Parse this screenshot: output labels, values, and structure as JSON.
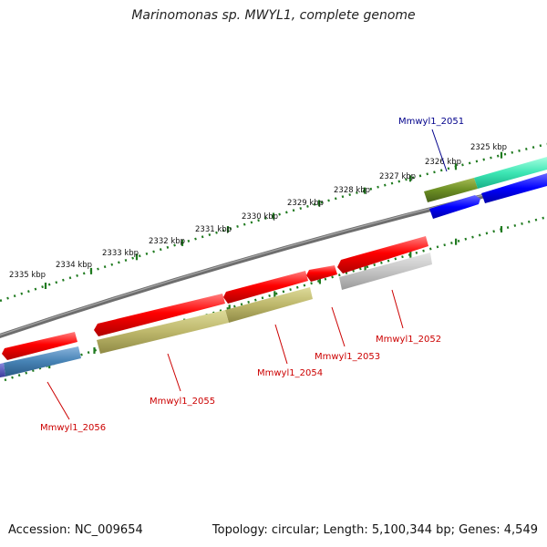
{
  "title": "Marinomonas sp. MWYL1, complete genome",
  "footer": {
    "accession": "Accession: NC_009654",
    "topology": "Topology: circular; Length: 5,100,344 bp; Genes: 4,549"
  },
  "colors": {
    "backbone": "#7a7a7a",
    "ticks": "#1f7a1f",
    "forward_label": "#00008b",
    "reverse_label": "#cc0000",
    "cds": "#ff0000"
  },
  "scale_labels": [
    "2325 kbp",
    "2326 kbp",
    "2327 kbp",
    "2328 kbp",
    "2329 kbp",
    "2330 kbp",
    "2331 kbp",
    "2332 kbp",
    "2333 kbp",
    "2334 kbp",
    "2335 kbp"
  ],
  "gene_labels": [
    {
      "text": "Mmwyl1_2051",
      "strand": "forward"
    },
    {
      "text": "Mmwyl1_2052",
      "strand": "reverse"
    },
    {
      "text": "Mmwyl1_2053",
      "strand": "reverse"
    },
    {
      "text": "Mmwyl1_2054",
      "strand": "reverse"
    },
    {
      "text": "Mmwyl1_2055",
      "strand": "reverse"
    },
    {
      "text": "Mmwyl1_2056",
      "strand": "reverse"
    }
  ]
}
